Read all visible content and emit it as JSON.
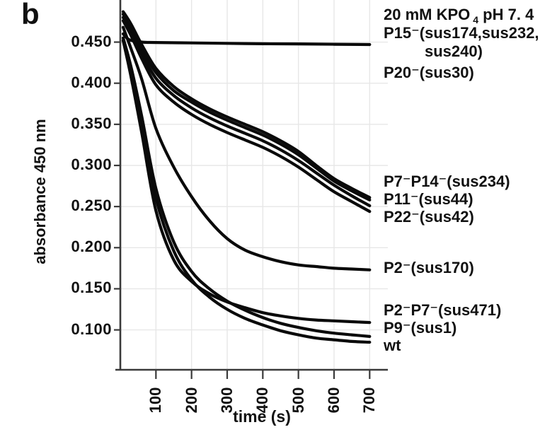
{
  "panel_label": "b",
  "colors": {
    "curve": "#0a0a0a",
    "grid": "#e7e7e7",
    "axis": "#3a3a3a",
    "text": "#111111",
    "background": "#ffffff"
  },
  "annotations": {
    "condition": {
      "pre": "20 mM KPO",
      "sub": "4",
      "post": " pH 7. 4"
    },
    "entries": [
      {
        "id": "p15-line1",
        "text": "P15⁻(sus174,sus232,"
      },
      {
        "id": "p15-line2",
        "text": "sus240)"
      },
      {
        "id": "p20",
        "text": "P20⁻(sus30)"
      },
      {
        "id": "p7p14",
        "text": "P7⁻P14⁻(sus234)"
      },
      {
        "id": "p11",
        "text": "P11⁻(sus44)"
      },
      {
        "id": "p22",
        "text": "P22⁻(sus42)"
      },
      {
        "id": "p2",
        "text": "P2⁻(sus170)"
      },
      {
        "id": "p2p7",
        "text": "P2⁻P7⁻(sus471)"
      },
      {
        "id": "p9",
        "text": "P9⁻(sus1)"
      },
      {
        "id": "wt",
        "text": "wt"
      }
    ]
  },
  "chart_data": {
    "type": "line",
    "title": "20 mM KPO4 pH 7.4",
    "xlabel": "time (s)",
    "ylabel": "absorbance 450 nm",
    "xlim": [
      0,
      745
    ],
    "ylim": [
      0.0515,
      0.497
    ],
    "grid": true,
    "legend_position": "right",
    "xticks": [
      {
        "label": "100",
        "value": 100
      },
      {
        "label": "200",
        "value": 200
      },
      {
        "label": "300",
        "value": 300
      },
      {
        "label": "400",
        "value": 400
      },
      {
        "label": "500",
        "value": 500
      },
      {
        "label": "600",
        "value": 600
      },
      {
        "label": "700",
        "value": 700
      }
    ],
    "yticks": [
      {
        "label": "0.450",
        "value": 0.45
      },
      {
        "label": "0.400",
        "value": 0.4
      },
      {
        "label": "0.350",
        "value": 0.35
      },
      {
        "label": "0.300",
        "value": 0.3
      },
      {
        "label": "0.250",
        "value": 0.25
      },
      {
        "label": "0.200",
        "value": 0.2
      },
      {
        "label": "0.150",
        "value": 0.15
      },
      {
        "label": "0.100",
        "value": 0.1
      }
    ],
    "series": [
      {
        "name": "P15⁻(sus174,sus232,sus240)",
        "values": [
          [
            8,
            0.46
          ],
          [
            25,
            0.453
          ],
          [
            60,
            0.45
          ],
          [
            100,
            0.4495
          ],
          [
            200,
            0.449
          ],
          [
            300,
            0.4485
          ],
          [
            400,
            0.448
          ],
          [
            500,
            0.4478
          ],
          [
            600,
            0.4474
          ],
          [
            700,
            0.447
          ]
        ]
      },
      {
        "name": "P20⁻(sus30)",
        "values": [
          [
            8,
            0.487
          ],
          [
            30,
            0.472
          ],
          [
            60,
            0.447
          ],
          [
            100,
            0.418
          ],
          [
            150,
            0.396
          ],
          [
            200,
            0.381
          ],
          [
            250,
            0.369
          ],
          [
            300,
            0.359
          ],
          [
            350,
            0.35
          ],
          [
            400,
            0.341
          ],
          [
            450,
            0.33
          ],
          [
            500,
            0.317
          ],
          [
            550,
            0.3
          ],
          [
            600,
            0.284
          ],
          [
            650,
            0.272
          ],
          [
            700,
            0.261
          ]
        ]
      },
      {
        "name": "P7⁻P14⁻(sus234)",
        "values": [
          [
            8,
            0.484
          ],
          [
            30,
            0.468
          ],
          [
            60,
            0.442
          ],
          [
            100,
            0.413
          ],
          [
            150,
            0.391
          ],
          [
            200,
            0.377
          ],
          [
            250,
            0.365
          ],
          [
            300,
            0.355
          ],
          [
            350,
            0.346
          ],
          [
            400,
            0.337
          ],
          [
            450,
            0.326
          ],
          [
            500,
            0.313
          ],
          [
            550,
            0.297
          ],
          [
            600,
            0.281
          ],
          [
            650,
            0.269
          ],
          [
            700,
            0.258
          ]
        ]
      },
      {
        "name": "P11⁻(sus44)",
        "values": [
          [
            8,
            0.48
          ],
          [
            30,
            0.463
          ],
          [
            60,
            0.436
          ],
          [
            100,
            0.406
          ],
          [
            150,
            0.385
          ],
          [
            200,
            0.37
          ],
          [
            250,
            0.358
          ],
          [
            300,
            0.348
          ],
          [
            350,
            0.339
          ],
          [
            400,
            0.33
          ],
          [
            450,
            0.319
          ],
          [
            500,
            0.306
          ],
          [
            550,
            0.291
          ],
          [
            600,
            0.276
          ],
          [
            650,
            0.263
          ],
          [
            700,
            0.251
          ]
        ]
      },
      {
        "name": "P22⁻(sus42)",
        "values": [
          [
            8,
            0.476
          ],
          [
            30,
            0.458
          ],
          [
            60,
            0.43
          ],
          [
            100,
            0.398
          ],
          [
            150,
            0.377
          ],
          [
            200,
            0.362
          ],
          [
            250,
            0.35
          ],
          [
            300,
            0.34
          ],
          [
            350,
            0.331
          ],
          [
            400,
            0.322
          ],
          [
            450,
            0.311
          ],
          [
            500,
            0.298
          ],
          [
            550,
            0.283
          ],
          [
            600,
            0.268
          ],
          [
            650,
            0.256
          ],
          [
            700,
            0.244
          ]
        ]
      },
      {
        "name": "P2⁻(sus170)",
        "values": [
          [
            8,
            0.468
          ],
          [
            30,
            0.442
          ],
          [
            60,
            0.405
          ],
          [
            100,
            0.345
          ],
          [
            150,
            0.298
          ],
          [
            200,
            0.262
          ],
          [
            250,
            0.233
          ],
          [
            300,
            0.211
          ],
          [
            350,
            0.197
          ],
          [
            400,
            0.189
          ],
          [
            450,
            0.183
          ],
          [
            500,
            0.179
          ],
          [
            550,
            0.177
          ],
          [
            600,
            0.175
          ],
          [
            650,
            0.174
          ],
          [
            700,
            0.173
          ]
        ]
      },
      {
        "name": "P2⁻P7⁻(sus471)",
        "values": [
          [
            8,
            0.452
          ],
          [
            30,
            0.408
          ],
          [
            60,
            0.34
          ],
          [
            100,
            0.245
          ],
          [
            150,
            0.185
          ],
          [
            200,
            0.159
          ],
          [
            250,
            0.144
          ],
          [
            300,
            0.134
          ],
          [
            350,
            0.127
          ],
          [
            400,
            0.121
          ],
          [
            450,
            0.117
          ],
          [
            500,
            0.114
          ],
          [
            550,
            0.112
          ],
          [
            600,
            0.111
          ],
          [
            650,
            0.11
          ],
          [
            700,
            0.109
          ]
        ]
      },
      {
        "name": "P9⁻(sus1)",
        "values": [
          [
            8,
            0.455
          ],
          [
            30,
            0.42
          ],
          [
            60,
            0.36
          ],
          [
            100,
            0.272
          ],
          [
            150,
            0.207
          ],
          [
            200,
            0.171
          ],
          [
            250,
            0.15
          ],
          [
            300,
            0.135
          ],
          [
            350,
            0.124
          ],
          [
            400,
            0.115
          ],
          [
            450,
            0.108
          ],
          [
            500,
            0.103
          ],
          [
            550,
            0.099
          ],
          [
            600,
            0.096
          ],
          [
            650,
            0.094
          ],
          [
            700,
            0.092
          ]
        ]
      },
      {
        "name": "wt",
        "values": [
          [
            8,
            0.452
          ],
          [
            30,
            0.415
          ],
          [
            60,
            0.352
          ],
          [
            100,
            0.26
          ],
          [
            150,
            0.196
          ],
          [
            200,
            0.161
          ],
          [
            250,
            0.14
          ],
          [
            300,
            0.125
          ],
          [
            350,
            0.114
          ],
          [
            400,
            0.106
          ],
          [
            450,
            0.099
          ],
          [
            500,
            0.094
          ],
          [
            550,
            0.09
          ],
          [
            600,
            0.088
          ],
          [
            650,
            0.086
          ],
          [
            700,
            0.085
          ]
        ]
      }
    ]
  }
}
